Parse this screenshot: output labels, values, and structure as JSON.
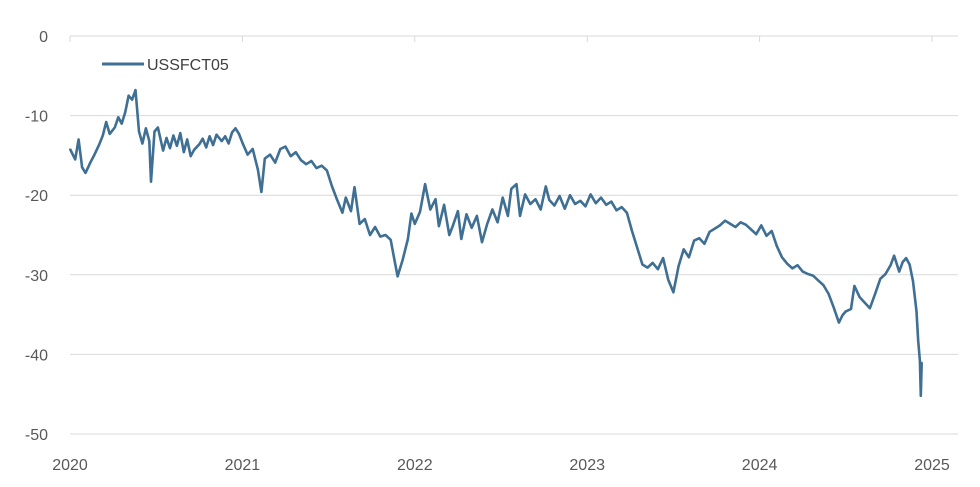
{
  "chart_data": {
    "type": "line",
    "title": "",
    "xlabel": "",
    "ylabel": "",
    "xlim": [
      2020.0,
      2025.0
    ],
    "ylim": [
      -50,
      0
    ],
    "y_ticks": [
      0,
      -10,
      -20,
      -30,
      -40,
      -50
    ],
    "x_ticks": [
      2020,
      2021,
      2022,
      2023,
      2024,
      2025
    ],
    "y_tick_labels": [
      "0",
      "-10",
      "-20",
      "-30",
      "-40",
      "-50"
    ],
    "x_tick_labels": [
      "2020",
      "2021",
      "2022",
      "2023",
      "2024",
      "2025"
    ],
    "grid": "horizontal",
    "legend_position": "top-left",
    "series": [
      {
        "name": "USSFCT05",
        "color": "#3f6f93",
        "points": [
          [
            2020.0,
            -14.2
          ],
          [
            2020.03,
            -15.5
          ],
          [
            2020.05,
            -13.0
          ],
          [
            2020.07,
            -16.5
          ],
          [
            2020.09,
            -17.2
          ],
          [
            2020.12,
            -15.8
          ],
          [
            2020.14,
            -15.0
          ],
          [
            2020.17,
            -13.6
          ],
          [
            2020.19,
            -12.5
          ],
          [
            2020.21,
            -10.8
          ],
          [
            2020.23,
            -12.3
          ],
          [
            2020.26,
            -11.5
          ],
          [
            2020.28,
            -10.2
          ],
          [
            2020.3,
            -11.0
          ],
          [
            2020.32,
            -9.6
          ],
          [
            2020.34,
            -7.5
          ],
          [
            2020.36,
            -8.0
          ],
          [
            2020.38,
            -6.8
          ],
          [
            2020.4,
            -12.0
          ],
          [
            2020.42,
            -13.5
          ],
          [
            2020.44,
            -11.6
          ],
          [
            2020.46,
            -13.2
          ],
          [
            2020.47,
            -18.3
          ],
          [
            2020.49,
            -12.0
          ],
          [
            2020.51,
            -11.5
          ],
          [
            2020.54,
            -14.4
          ],
          [
            2020.56,
            -12.8
          ],
          [
            2020.58,
            -14.1
          ],
          [
            2020.6,
            -12.5
          ],
          [
            2020.62,
            -13.8
          ],
          [
            2020.64,
            -12.2
          ],
          [
            2020.66,
            -14.6
          ],
          [
            2020.68,
            -13.0
          ],
          [
            2020.7,
            -15.1
          ],
          [
            2020.72,
            -14.3
          ],
          [
            2020.75,
            -13.6
          ],
          [
            2020.77,
            -12.9
          ],
          [
            2020.79,
            -14.0
          ],
          [
            2020.81,
            -12.6
          ],
          [
            2020.83,
            -13.7
          ],
          [
            2020.85,
            -12.4
          ],
          [
            2020.88,
            -13.2
          ],
          [
            2020.9,
            -12.6
          ],
          [
            2020.92,
            -13.5
          ],
          [
            2020.94,
            -12.1
          ],
          [
            2020.96,
            -11.6
          ],
          [
            2020.98,
            -12.3
          ],
          [
            2021.0,
            -13.4
          ],
          [
            2021.03,
            -14.9
          ],
          [
            2021.06,
            -14.2
          ],
          [
            2021.09,
            -16.8
          ],
          [
            2021.11,
            -19.6
          ],
          [
            2021.13,
            -15.4
          ],
          [
            2021.16,
            -14.9
          ],
          [
            2021.19,
            -15.9
          ],
          [
            2021.22,
            -14.2
          ],
          [
            2021.25,
            -13.9
          ],
          [
            2021.28,
            -15.1
          ],
          [
            2021.31,
            -14.6
          ],
          [
            2021.34,
            -15.6
          ],
          [
            2021.37,
            -16.1
          ],
          [
            2021.4,
            -15.7
          ],
          [
            2021.43,
            -16.6
          ],
          [
            2021.46,
            -16.3
          ],
          [
            2021.49,
            -16.9
          ],
          [
            2021.52,
            -18.9
          ],
          [
            2021.55,
            -20.6
          ],
          [
            2021.58,
            -22.2
          ],
          [
            2021.6,
            -20.3
          ],
          [
            2021.63,
            -22.0
          ],
          [
            2021.65,
            -19.0
          ],
          [
            2021.68,
            -23.6
          ],
          [
            2021.71,
            -23.0
          ],
          [
            2021.74,
            -25.0
          ],
          [
            2021.77,
            -24.0
          ],
          [
            2021.8,
            -25.2
          ],
          [
            2021.83,
            -25.0
          ],
          [
            2021.86,
            -25.6
          ],
          [
            2021.88,
            -27.9
          ],
          [
            2021.9,
            -30.2
          ],
          [
            2021.93,
            -28.1
          ],
          [
            2021.96,
            -25.5
          ],
          [
            2021.98,
            -22.3
          ],
          [
            2022.0,
            -23.6
          ],
          [
            2022.03,
            -22.1
          ],
          [
            2022.06,
            -18.6
          ],
          [
            2022.09,
            -21.8
          ],
          [
            2022.12,
            -20.5
          ],
          [
            2022.14,
            -23.9
          ],
          [
            2022.17,
            -21.2
          ],
          [
            2022.2,
            -25.0
          ],
          [
            2022.22,
            -23.9
          ],
          [
            2022.25,
            -22.0
          ],
          [
            2022.27,
            -25.5
          ],
          [
            2022.3,
            -22.4
          ],
          [
            2022.33,
            -24.1
          ],
          [
            2022.36,
            -22.6
          ],
          [
            2022.39,
            -25.9
          ],
          [
            2022.42,
            -23.6
          ],
          [
            2022.45,
            -21.8
          ],
          [
            2022.48,
            -23.4
          ],
          [
            2022.51,
            -20.3
          ],
          [
            2022.54,
            -22.6
          ],
          [
            2022.56,
            -19.2
          ],
          [
            2022.59,
            -18.6
          ],
          [
            2022.61,
            -22.6
          ],
          [
            2022.64,
            -19.9
          ],
          [
            2022.67,
            -21.1
          ],
          [
            2022.7,
            -20.5
          ],
          [
            2022.73,
            -21.8
          ],
          [
            2022.76,
            -18.9
          ],
          [
            2022.78,
            -20.6
          ],
          [
            2022.81,
            -21.3
          ],
          [
            2022.84,
            -20.1
          ],
          [
            2022.87,
            -21.7
          ],
          [
            2022.9,
            -20.0
          ],
          [
            2022.93,
            -21.1
          ],
          [
            2022.96,
            -20.7
          ],
          [
            2022.99,
            -21.4
          ],
          [
            2023.02,
            -19.9
          ],
          [
            2023.05,
            -21.0
          ],
          [
            2023.08,
            -20.3
          ],
          [
            2023.11,
            -21.2
          ],
          [
            2023.14,
            -20.8
          ],
          [
            2023.17,
            -21.9
          ],
          [
            2023.2,
            -21.5
          ],
          [
            2023.23,
            -22.2
          ],
          [
            2023.26,
            -24.5
          ],
          [
            2023.29,
            -26.6
          ],
          [
            2023.32,
            -28.7
          ],
          [
            2023.35,
            -29.1
          ],
          [
            2023.38,
            -28.5
          ],
          [
            2023.41,
            -29.3
          ],
          [
            2023.44,
            -27.9
          ],
          [
            2023.47,
            -30.6
          ],
          [
            2023.5,
            -32.2
          ],
          [
            2023.53,
            -28.9
          ],
          [
            2023.56,
            -26.8
          ],
          [
            2023.59,
            -27.8
          ],
          [
            2023.62,
            -25.7
          ],
          [
            2023.65,
            -25.4
          ],
          [
            2023.68,
            -26.1
          ],
          [
            2023.71,
            -24.6
          ],
          [
            2023.74,
            -24.2
          ],
          [
            2023.77,
            -23.8
          ],
          [
            2023.8,
            -23.2
          ],
          [
            2023.83,
            -23.6
          ],
          [
            2023.86,
            -24.0
          ],
          [
            2023.89,
            -23.4
          ],
          [
            2023.92,
            -23.7
          ],
          [
            2023.95,
            -24.3
          ],
          [
            2023.98,
            -24.9
          ],
          [
            2024.01,
            -23.8
          ],
          [
            2024.04,
            -25.1
          ],
          [
            2024.07,
            -24.5
          ],
          [
            2024.1,
            -26.4
          ],
          [
            2024.13,
            -27.8
          ],
          [
            2024.16,
            -28.6
          ],
          [
            2024.19,
            -29.2
          ],
          [
            2024.22,
            -28.8
          ],
          [
            2024.25,
            -29.6
          ],
          [
            2024.28,
            -29.9
          ],
          [
            2024.31,
            -30.1
          ],
          [
            2024.34,
            -30.7
          ],
          [
            2024.37,
            -31.3
          ],
          [
            2024.4,
            -32.4
          ],
          [
            2024.43,
            -34.1
          ],
          [
            2024.46,
            -36.0
          ],
          [
            2024.48,
            -35.1
          ],
          [
            2024.5,
            -34.6
          ],
          [
            2024.53,
            -34.3
          ],
          [
            2024.55,
            -31.4
          ],
          [
            2024.58,
            -32.8
          ],
          [
            2024.61,
            -33.5
          ],
          [
            2024.64,
            -34.2
          ],
          [
            2024.67,
            -32.4
          ],
          [
            2024.7,
            -30.5
          ],
          [
            2024.73,
            -29.9
          ],
          [
            2024.76,
            -28.8
          ],
          [
            2024.78,
            -27.6
          ],
          [
            2024.81,
            -29.6
          ],
          [
            2024.83,
            -28.4
          ],
          [
            2024.85,
            -27.9
          ],
          [
            2024.87,
            -28.7
          ],
          [
            2024.89,
            -30.8
          ],
          [
            2024.91,
            -34.6
          ],
          [
            2024.92,
            -38.3
          ],
          [
            2024.93,
            -40.8
          ],
          [
            2024.935,
            -45.2
          ],
          [
            2024.94,
            -41.0
          ]
        ]
      }
    ]
  },
  "colors": {
    "line": "#3f6f93",
    "grid": "#d9d9d9",
    "tick_text": "#595959",
    "legend_text": "#404040"
  }
}
